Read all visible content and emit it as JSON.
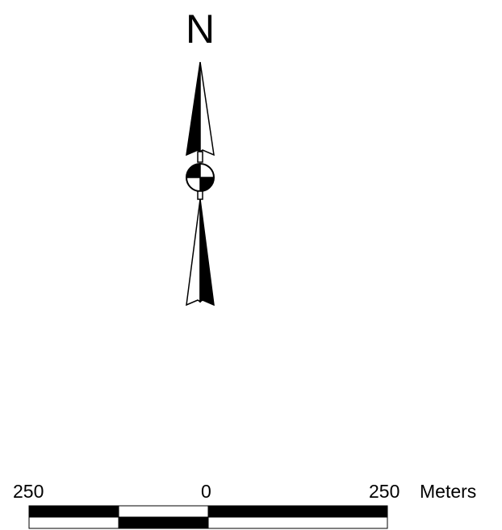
{
  "north_arrow": {
    "label": "N",
    "icon": "north-arrow-icon",
    "fill_color": "#000000",
    "outline_color": "#000000",
    "background": "#ffffff"
  },
  "scale_bar": {
    "labels": {
      "left": "250",
      "center": "0",
      "right": "250",
      "units": "Meters"
    },
    "tick_values": [
      250,
      0,
      250
    ],
    "units": "Meters",
    "dark_color": "#000000",
    "light_color": "#ffffff"
  }
}
